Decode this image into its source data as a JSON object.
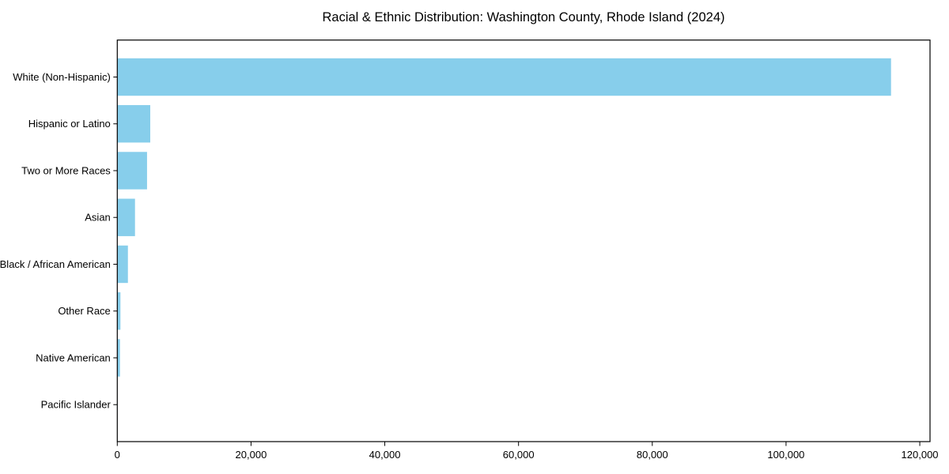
{
  "chart_data": {
    "type": "bar",
    "orientation": "horizontal",
    "title": "Racial & Ethnic Distribution: Washington County, Rhode Island (2024)",
    "categories": [
      "White (Non-Hispanic)",
      "Hispanic or Latino",
      "Two or More Races",
      "Asian",
      "Black / African American",
      "Other Race",
      "Native American",
      "Pacific Islander"
    ],
    "values": [
      115700,
      4930,
      4450,
      2650,
      1590,
      470,
      400,
      30
    ],
    "xlabel": "",
    "ylabel": "",
    "xlim": [
      0,
      121530
    ],
    "xticks": [
      {
        "value": 0,
        "label": "0"
      },
      {
        "value": 20000,
        "label": "20,000"
      },
      {
        "value": 40000,
        "label": "40,000"
      },
      {
        "value": 60000,
        "label": "60,000"
      },
      {
        "value": 80000,
        "label": "80,000"
      },
      {
        "value": 100000,
        "label": "100,000"
      },
      {
        "value": 120000,
        "label": "120,000"
      }
    ],
    "grid": false,
    "legend": null,
    "colors": {
      "bar": "#87CEEB",
      "axis": "#000000",
      "text": "#000000",
      "background": "#ffffff"
    }
  }
}
